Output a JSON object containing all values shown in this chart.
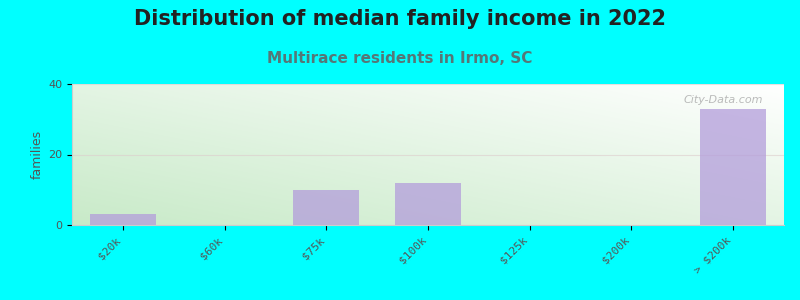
{
  "title": "Distribution of median family income in 2022",
  "subtitle": "Multirace residents in Irmo, SC",
  "categories": [
    "$20k",
    "$60k",
    "$75k",
    "$100k",
    "$125k",
    "$200k",
    "> $200k"
  ],
  "values": [
    3,
    0,
    10,
    12,
    0,
    0,
    33
  ],
  "bar_color": "#b39ddb",
  "bar_alpha": 0.75,
  "background_color": "#00ffff",
  "plot_bg_colors": [
    "#d4edda",
    "#e8f5e9",
    "#f0faf0",
    "#f8fffa",
    "#ffffff"
  ],
  "ylabel": "families",
  "ylim": [
    0,
    40
  ],
  "yticks": [
    0,
    20,
    40
  ],
  "title_fontsize": 15,
  "subtitle_fontsize": 11,
  "title_color": "#222222",
  "subtitle_color": "#557777",
  "watermark": "City-Data.com",
  "grid_color": "#ddcccc",
  "grid_alpha": 0.6,
  "tick_fontsize": 8,
  "tick_color": "#555555"
}
